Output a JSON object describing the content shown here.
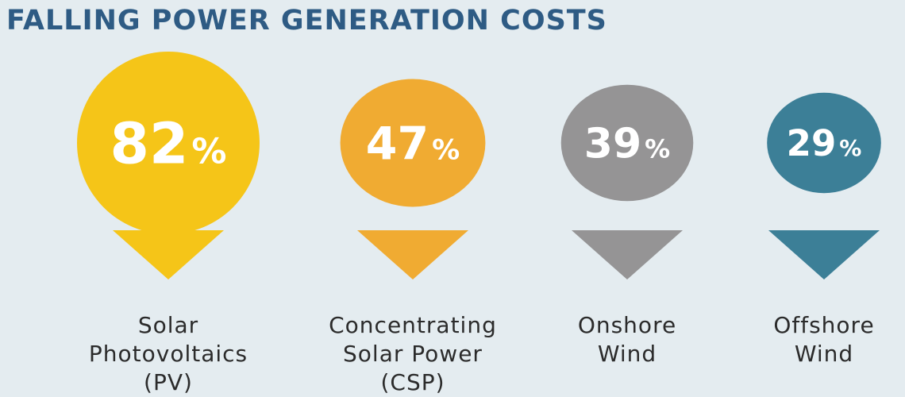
{
  "title": "FALLING POWER GENERATION COSTS",
  "chart_data": {
    "type": "bubble",
    "title": "FALLING POWER GENERATION COSTS",
    "unit": "%",
    "series": [
      {
        "name": "Solar Photovoltaics (PV)",
        "label_lines": [
          "Solar",
          "Photovoltaics",
          "(PV)"
        ],
        "value": 82,
        "color": "#f5c518"
      },
      {
        "name": "Concentrating Solar Power (CSP)",
        "label_lines": [
          "Concentrating",
          "Solar Power",
          "(CSP)"
        ],
        "value": 47,
        "color": "#f0ab32"
      },
      {
        "name": "Onshore Wind",
        "label_lines": [
          "Onshore",
          "Wind"
        ],
        "value": 39,
        "color": "#959495"
      },
      {
        "name": "Offshore Wind",
        "label_lines": [
          "Offshore",
          "Wind"
        ],
        "value": 29,
        "color": "#3c7f97"
      }
    ]
  }
}
